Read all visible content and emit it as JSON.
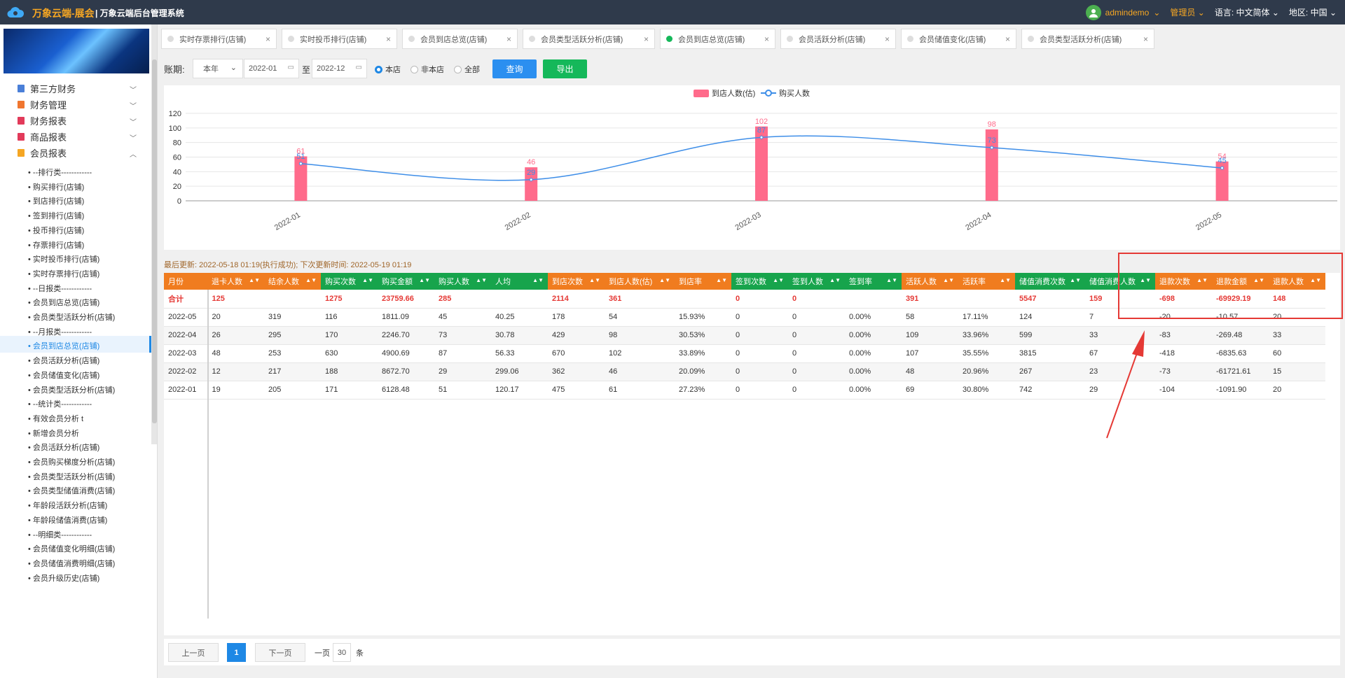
{
  "header": {
    "brand": "万象云端-展会",
    "system": "| 万象云端后台管理系统",
    "user": "admindemo",
    "role": "管理员",
    "lang_label": "语言:",
    "lang_value": "中文简体",
    "region_label": "地区:",
    "region_value": "中国"
  },
  "sidebar": {
    "sections": [
      {
        "label": "第三方财务",
        "color": "#4a7fd8"
      },
      {
        "label": "财务管理",
        "color": "#f0762f"
      },
      {
        "label": "财务报表",
        "color": "#e23a5a"
      },
      {
        "label": "商品报表",
        "color": "#e23a5a"
      },
      {
        "label": "会员报表",
        "color": "#f5a623"
      }
    ],
    "items": [
      "• --排行类------------",
      "• 购买排行(店铺)",
      "• 到店排行(店铺)",
      "• 签到排行(店铺)",
      "• 投币排行(店铺)",
      "• 存票排行(店铺)",
      "• 实时投币排行(店铺)",
      "• 实时存票排行(店铺)",
      "• --日报类------------",
      "• 会员到店总览(店铺)",
      "• 会员类型活跃分析(店铺)",
      "• --月报类------------",
      "• 会员到店总览(店铺)",
      "• 会员活跃分析(店铺)",
      "• 会员储值变化(店铺)",
      "• 会员类型活跃分析(店铺)",
      "• --统计类------------",
      "• 有效会员分析 t",
      "• 新增会员分析",
      "• 会员活跃分析(店铺)",
      "• 会员购买梯度分析(店铺)",
      "• 会员类型活跃分析(店铺)",
      "• 会员类型储值消费(店铺)",
      "• 年龄段活跃分析(店铺)",
      "• 年龄段储值消费(店铺)",
      "• --明细类------------",
      "• 会员储值变化明细(店铺)",
      "• 会员储值消费明细(店铺)",
      "• 会员升级历史(店铺)"
    ]
  },
  "tabs": [
    "实时存票排行(店铺)",
    "实时投币排行(店铺)",
    "会员到店总览(店铺)",
    "会员类型活跃分析(店铺)",
    "会员到店总览(店铺)",
    "会员活跃分析(店铺)",
    "会员储值变化(店铺)",
    "会员类型活跃分析(店铺)"
  ],
  "filters": {
    "label": "账期:",
    "period": "本年",
    "from": "2022-01",
    "to_label": "至",
    "to": "2022-12",
    "radio1": "本店",
    "radio2": "非本店",
    "radio3": "全部",
    "query": "查询",
    "export": "导出"
  },
  "chart_data": {
    "type": "bar",
    "categories": [
      "2022-01",
      "2022-02",
      "2022-03",
      "2022-04",
      "2022-05"
    ],
    "series": [
      {
        "name": "到店人数(估)",
        "type": "bar",
        "color": "#ff6b8b",
        "values": [
          61,
          46,
          102,
          98,
          54
        ]
      },
      {
        "name": "购买人数",
        "type": "line",
        "color": "#3e8ee8",
        "values": [
          51,
          29,
          87,
          73,
          45
        ]
      }
    ],
    "yticks": [
      "0",
      "20",
      "40",
      "60",
      "80",
      "100",
      "120"
    ],
    "ylim": [
      0,
      120
    ]
  },
  "info": "最后更新: 2022-05-18 01:19(执行成功); 下次更新时间: 2022-05-19 01:19",
  "table": {
    "headers": [
      "月份",
      "退卡人数",
      "结余人数",
      "购买次数",
      "购买金额",
      "购买人数",
      "人均",
      "到店次数",
      "到店人数(估)",
      "到店率",
      "签到次数",
      "签到人数",
      "签到率",
      "活跃人数",
      "活跃率",
      "储值消费次数",
      "储值消费人数",
      "退款次数",
      "退款金额",
      "退款人数"
    ],
    "total": [
      "合计",
      "125",
      "",
      "1275",
      "23759.66",
      "285",
      "",
      "2114",
      "361",
      "",
      "0",
      "0",
      "",
      "391",
      "",
      "5547",
      "159",
      "-698",
      "-69929.19",
      "148"
    ],
    "rows": [
      [
        "2022-05",
        "20",
        "319",
        "116",
        "1811.09",
        "45",
        "40.25",
        "178",
        "54",
        "15.93%",
        "0",
        "0",
        "0.00%",
        "58",
        "17.11%",
        "124",
        "7",
        "-20",
        "-10.57",
        "20"
      ],
      [
        "2022-04",
        "26",
        "295",
        "170",
        "2246.70",
        "73",
        "30.78",
        "429",
        "98",
        "30.53%",
        "0",
        "0",
        "0.00%",
        "109",
        "33.96%",
        "599",
        "33",
        "-83",
        "-269.48",
        "33"
      ],
      [
        "2022-03",
        "48",
        "253",
        "630",
        "4900.69",
        "87",
        "56.33",
        "670",
        "102",
        "33.89%",
        "0",
        "0",
        "0.00%",
        "107",
        "35.55%",
        "3815",
        "67",
        "-418",
        "-6835.63",
        "60"
      ],
      [
        "2022-02",
        "12",
        "217",
        "188",
        "8672.70",
        "29",
        "299.06",
        "362",
        "46",
        "20.09%",
        "0",
        "0",
        "0.00%",
        "48",
        "20.96%",
        "267",
        "23",
        "-73",
        "-61721.61",
        "15"
      ],
      [
        "2022-01",
        "19",
        "205",
        "171",
        "6128.48",
        "51",
        "120.17",
        "475",
        "61",
        "27.23%",
        "0",
        "0",
        "0.00%",
        "69",
        "30.80%",
        "742",
        "29",
        "-104",
        "-1091.90",
        "20"
      ]
    ]
  },
  "pager": {
    "prev": "上一页",
    "current": "1",
    "next": "下一页",
    "per_label": "一页",
    "per_value": "30",
    "per_unit": "条"
  }
}
